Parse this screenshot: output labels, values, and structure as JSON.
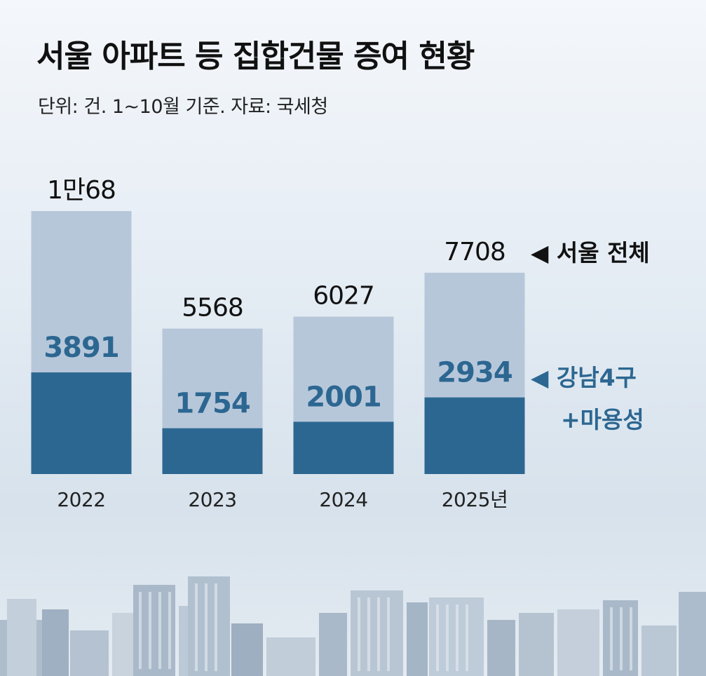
{
  "title": "서울 아파트 등 집합건물 증여 현황",
  "subtitle": "단위: 건. 1~10월 기준. 자료: 국세청",
  "colors": {
    "total_bar": "#b7c7da",
    "sub_bar": "#2c6791",
    "sub_text": "#2c6791"
  },
  "chart_data": {
    "type": "bar",
    "categories": [
      "2022",
      "2023",
      "2024",
      "2025년"
    ],
    "series": [
      {
        "name": "서울 전체",
        "values": [
          10068,
          5568,
          6027,
          7708
        ],
        "labels": [
          "1만68",
          "5568",
          "6027",
          "7708"
        ]
      },
      {
        "name": "강남4구 +마용성",
        "values": [
          3891,
          1754,
          2001,
          2934
        ],
        "labels": [
          "3891",
          "1754",
          "2001",
          "2934"
        ]
      }
    ],
    "legend": {
      "marker": "◀",
      "total": "서울 전체",
      "sub_line1": "강남4구",
      "sub_line2": "+마용성",
      "placement": "right"
    }
  }
}
